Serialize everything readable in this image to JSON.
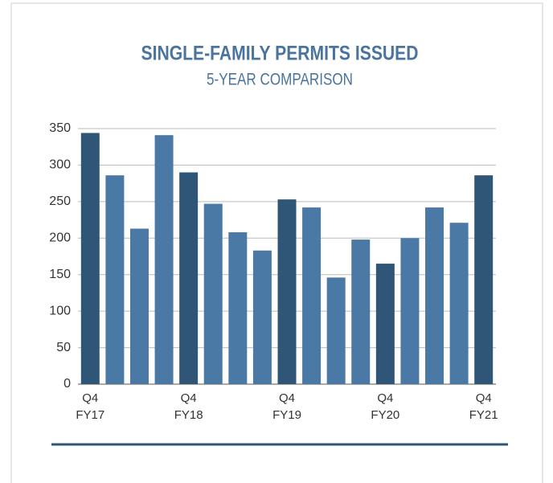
{
  "chart_data": {
    "type": "bar",
    "title": "SINGLE-FAMILY PERMITS ISSUED",
    "subtitle": "5-YEAR COMPARISON",
    "categories": [
      "Q4\nFY17",
      null,
      null,
      null,
      "Q4\nFY18",
      null,
      null,
      null,
      "Q4\nFY19",
      null,
      null,
      null,
      "Q4\nFY20",
      null,
      null,
      null,
      "Q4\nFY21"
    ],
    "values": [
      344,
      286,
      213,
      341,
      290,
      247,
      208,
      183,
      253,
      242,
      146,
      198,
      165,
      200,
      242,
      221,
      286
    ],
    "colors": [
      "#2f5577",
      "#4a79a5",
      "#4a79a5",
      "#4a79a5",
      "#2f5577",
      "#4a79a5",
      "#4a79a5",
      "#4a79a5",
      "#2f5577",
      "#4a79a5",
      "#4a79a5",
      "#4a79a5",
      "#2f5577",
      "#4a79a5",
      "#4a79a5",
      "#4a79a5",
      "#2f5577"
    ],
    "ylim": [
      0,
      350
    ],
    "yticks": [
      0,
      50,
      100,
      150,
      200,
      250,
      300,
      350
    ],
    "grid": true
  }
}
